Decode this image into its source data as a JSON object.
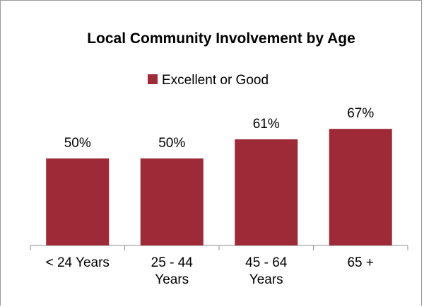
{
  "chart_data": {
    "type": "bar",
    "title": "Local Community Involvement by Age",
    "categories": [
      [
        "< 24 Years"
      ],
      [
        "25 - 44",
        "Years"
      ],
      [
        "45 - 64",
        "Years"
      ],
      [
        "65 +"
      ]
    ],
    "series": [
      {
        "name": "Excellent or Good",
        "values": [
          50,
          50,
          61,
          67
        ],
        "labels": [
          "50%",
          "50%",
          "61%",
          "67%"
        ],
        "color": "#9e2a38"
      }
    ],
    "ylim": [
      0,
      100
    ],
    "grid": false,
    "legend_position": "top"
  }
}
